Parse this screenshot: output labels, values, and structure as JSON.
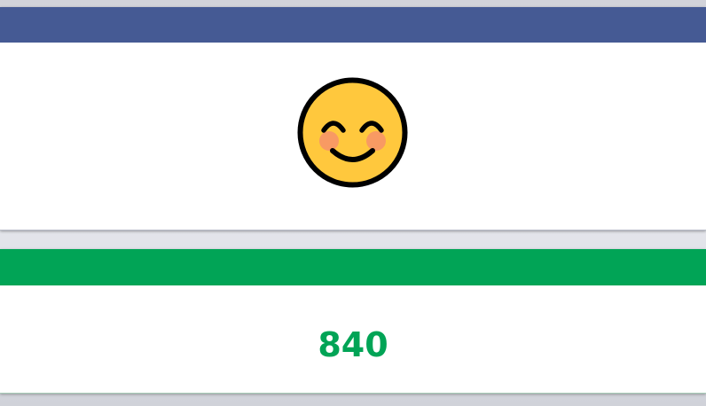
{
  "mood_card": {
    "header_color": "#455a94",
    "icon": "smiling-face-with-smiling-eyes-icon",
    "emoji": "😊"
  },
  "score_card": {
    "header_color": "#01a456",
    "value": "840",
    "value_color": "#01a456"
  }
}
